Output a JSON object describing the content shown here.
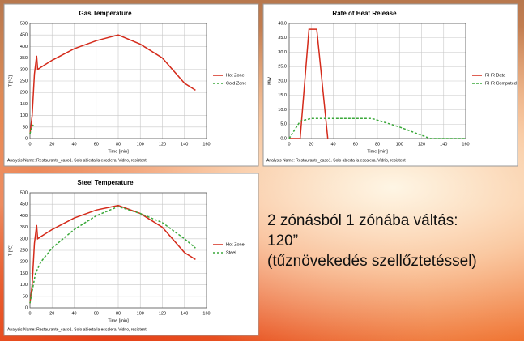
{
  "slide_text": [
    "2 zónásból 1 zónába váltás:",
    "120”",
    "(tűznövekedés szellőztetéssel)"
  ],
  "chart_data": [
    {
      "type": "line",
      "title": "Gas Temperature",
      "xlabel": "Time [min]",
      "ylabel": "T [°C]",
      "footnote": "Analysis Name: Restaurante_caso1. Solo abierta la escalera. Vidrio, resistent",
      "xlim": [
        0,
        160
      ],
      "xticks": [
        0,
        20,
        40,
        60,
        80,
        100,
        120,
        140,
        160
      ],
      "ylim": [
        0,
        500
      ],
      "yticks": [
        0,
        50,
        100,
        150,
        200,
        250,
        300,
        350,
        400,
        450,
        500
      ],
      "grid": true,
      "series": [
        {
          "name": "Hot Zone",
          "color": "#d42a1a",
          "dash": false,
          "x": [
            0,
            2,
            4,
            6,
            7,
            10,
            20,
            40,
            60,
            80,
            100,
            120,
            140,
            150
          ],
          "values": [
            20,
            100,
            280,
            360,
            300,
            310,
            340,
            390,
            425,
            450,
            410,
            350,
            240,
            210
          ]
        },
        {
          "name": "Cold Zone",
          "color": "#3aa83a",
          "dash": true,
          "x": [
            0,
            1,
            3
          ],
          "values": [
            20,
            40,
            60
          ]
        }
      ]
    },
    {
      "type": "line",
      "title": "Rate of Heat Release",
      "xlabel": "Time [min]",
      "ylabel": "MW",
      "footnote": "Analysis Name: Restaurante_caso1. Solo abierta la escalera. Vidrio, resistent",
      "xlim": [
        0,
        160
      ],
      "xticks": [
        0,
        20,
        40,
        60,
        80,
        100,
        120,
        140,
        160
      ],
      "ylim": [
        0,
        40
      ],
      "yticks": [
        {
          "value": 0,
          "label": "0.0"
        },
        {
          "value": 5,
          "label": "5.0"
        },
        {
          "value": 10,
          "label": "10.0"
        },
        {
          "value": 15,
          "label": "15.0"
        },
        {
          "value": 20,
          "label": "20.0"
        },
        {
          "value": 25,
          "label": "25.0"
        },
        {
          "value": 30,
          "label": "30.0"
        },
        {
          "value": 35,
          "label": "35.0"
        },
        {
          "value": 40,
          "label": "40.0"
        }
      ],
      "grid": true,
      "series": [
        {
          "name": "RHR Data",
          "color": "#d42a1a",
          "dash": false,
          "x": [
            0,
            10,
            18,
            25,
            35
          ],
          "values": [
            0,
            0,
            38,
            38,
            0
          ]
        },
        {
          "name": "RHR Computed",
          "color": "#3aa83a",
          "dash": true,
          "x": [
            0,
            10,
            20,
            75,
            100,
            128,
            160
          ],
          "values": [
            0,
            6,
            7,
            7,
            4,
            0,
            0
          ]
        }
      ]
    },
    {
      "type": "line",
      "title": "Steel Temperature",
      "xlabel": "Time [min]",
      "ylabel": "T [°C]",
      "footnote": "Analysis Name: Restaurante_caso1. Solo abierta la escalera. Vidrio, resistent",
      "xlim": [
        0,
        160
      ],
      "xticks": [
        0,
        20,
        40,
        60,
        80,
        100,
        120,
        140,
        160
      ],
      "ylim": [
        0,
        500
      ],
      "yticks": [
        0,
        50,
        100,
        150,
        200,
        250,
        300,
        350,
        400,
        450,
        500
      ],
      "grid": true,
      "series": [
        {
          "name": "Hot Zone",
          "color": "#d42a1a",
          "dash": false,
          "x": [
            0,
            2,
            4,
            6,
            7,
            10,
            20,
            40,
            60,
            80,
            100,
            120,
            140,
            150
          ],
          "values": [
            20,
            100,
            280,
            360,
            300,
            310,
            340,
            390,
            425,
            445,
            410,
            350,
            240,
            210
          ]
        },
        {
          "name": "Steel",
          "color": "#3aa83a",
          "dash": true,
          "x": [
            0,
            5,
            10,
            20,
            40,
            60,
            80,
            100,
            120,
            140,
            150
          ],
          "values": [
            20,
            150,
            200,
            260,
            340,
            400,
            440,
            410,
            370,
            300,
            260
          ]
        }
      ]
    }
  ]
}
